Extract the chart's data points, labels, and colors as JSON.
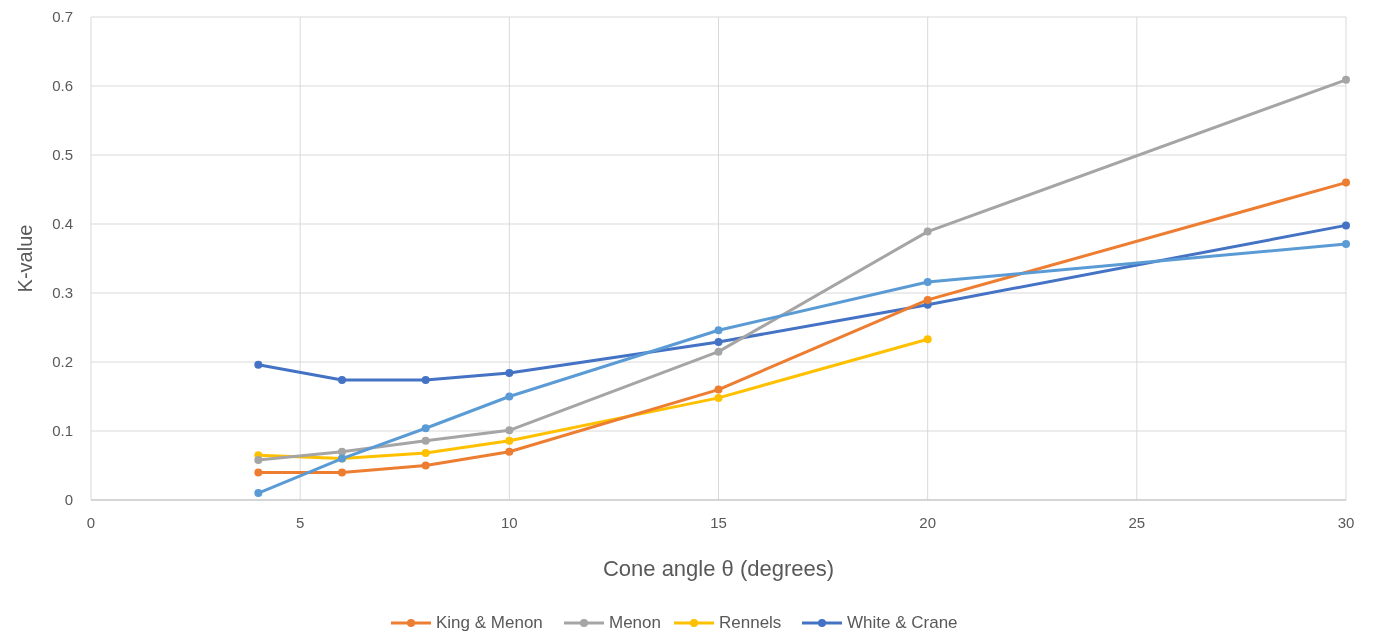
{
  "chart_data": {
    "type": "line",
    "xlabel": "Cone angle θ (degrees)",
    "ylabel": "K-value",
    "xlim": [
      0,
      30
    ],
    "xticks": [
      0,
      5,
      10,
      15,
      20,
      25,
      30
    ],
    "ylim": [
      0,
      0.7
    ],
    "yticks": [
      0,
      0.1,
      0.2,
      0.3,
      0.4,
      0.5,
      0.6,
      0.7
    ],
    "grid": true,
    "legend": "bottom",
    "marker": "circle",
    "line_style": "solid",
    "x": [
      4,
      6,
      8,
      10,
      15,
      20,
      30
    ],
    "series": [
      {
        "color": "#5b9bd5",
        "values": [
          0.01,
          0.06,
          0.104,
          0.15,
          0.246,
          0.316,
          0.371
        ]
      },
      {
        "name": "King & Menon",
        "color": "#ed7d31",
        "values": [
          0.04,
          0.04,
          0.05,
          0.07,
          0.16,
          0.29,
          0.46
        ]
      },
      {
        "name": "Menon",
        "color": "#a5a5a5",
        "values": [
          0.058,
          0.07,
          0.086,
          0.101,
          0.215,
          0.389,
          0.609
        ]
      },
      {
        "name": "Rennels",
        "color": "#ffc000",
        "values": [
          0.065,
          0.06,
          0.068,
          0.086,
          0.148,
          0.233,
          null
        ]
      },
      {
        "name": "White & Crane",
        "color": "#4472c4",
        "values": [
          0.196,
          0.174,
          0.174,
          0.184,
          0.229,
          0.283,
          0.398
        ]
      }
    ]
  }
}
